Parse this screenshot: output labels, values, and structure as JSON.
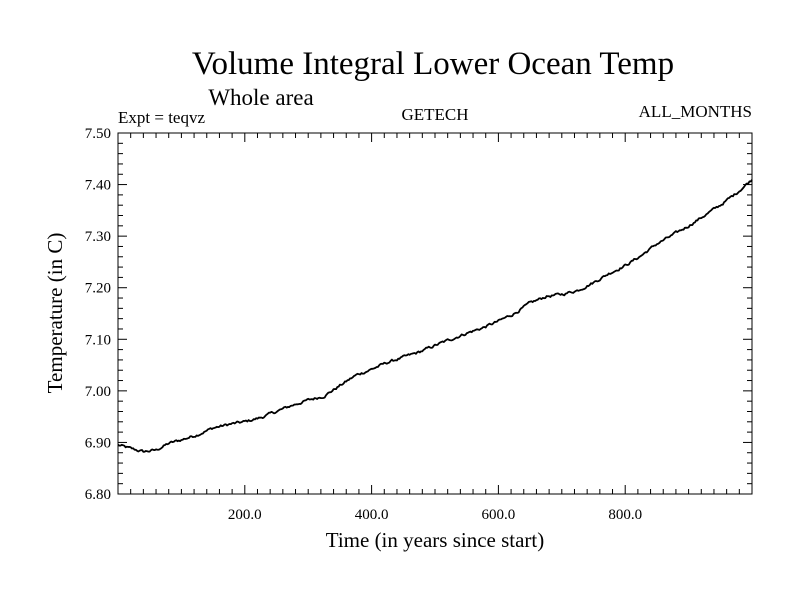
{
  "chart_data": {
    "type": "line",
    "title": "Volume Integral Lower Ocean Temp",
    "subtitle": "Whole area",
    "header_left": "Expt = teqvz",
    "header_center": "GETECH",
    "header_right": "ALL_MONTHS",
    "xlabel": "Time (in years since start)",
    "ylabel": "Temperature (in C)",
    "xlim": [
      0,
      1000
    ],
    "ylim": [
      6.8,
      7.5
    ],
    "xticks": [
      200,
      400,
      600,
      800
    ],
    "xtick_labels": [
      "200.0",
      "400.0",
      "600.0",
      "800.0"
    ],
    "yticks": [
      6.8,
      6.9,
      7.0,
      7.1,
      7.2,
      7.3,
      7.4,
      7.5
    ],
    "ytick_labels": [
      "6.80",
      "6.90",
      "7.00",
      "7.10",
      "7.20",
      "7.30",
      "7.40",
      "7.50"
    ],
    "grid": false,
    "series": [
      {
        "name": "Volume Integral Lower Ocean Temp",
        "x": [
          0,
          20,
          40,
          60,
          80,
          100,
          125,
          150,
          175,
          200,
          225,
          250,
          275,
          300,
          325,
          350,
          375,
          400,
          425,
          450,
          475,
          500,
          525,
          550,
          575,
          600,
          625,
          650,
          675,
          700,
          725,
          750,
          775,
          800,
          825,
          850,
          875,
          900,
          925,
          950,
          975,
          1000
        ],
        "y": [
          6.895,
          6.888,
          6.882,
          6.885,
          6.898,
          6.905,
          6.915,
          6.928,
          6.935,
          6.94,
          6.948,
          6.96,
          6.972,
          6.982,
          6.99,
          7.01,
          7.03,
          7.042,
          7.055,
          7.065,
          7.075,
          7.088,
          7.1,
          7.112,
          7.122,
          7.135,
          7.15,
          7.17,
          7.183,
          7.187,
          7.195,
          7.21,
          7.228,
          7.243,
          7.262,
          7.285,
          7.302,
          7.32,
          7.34,
          7.36,
          7.383,
          7.41
        ]
      }
    ]
  }
}
